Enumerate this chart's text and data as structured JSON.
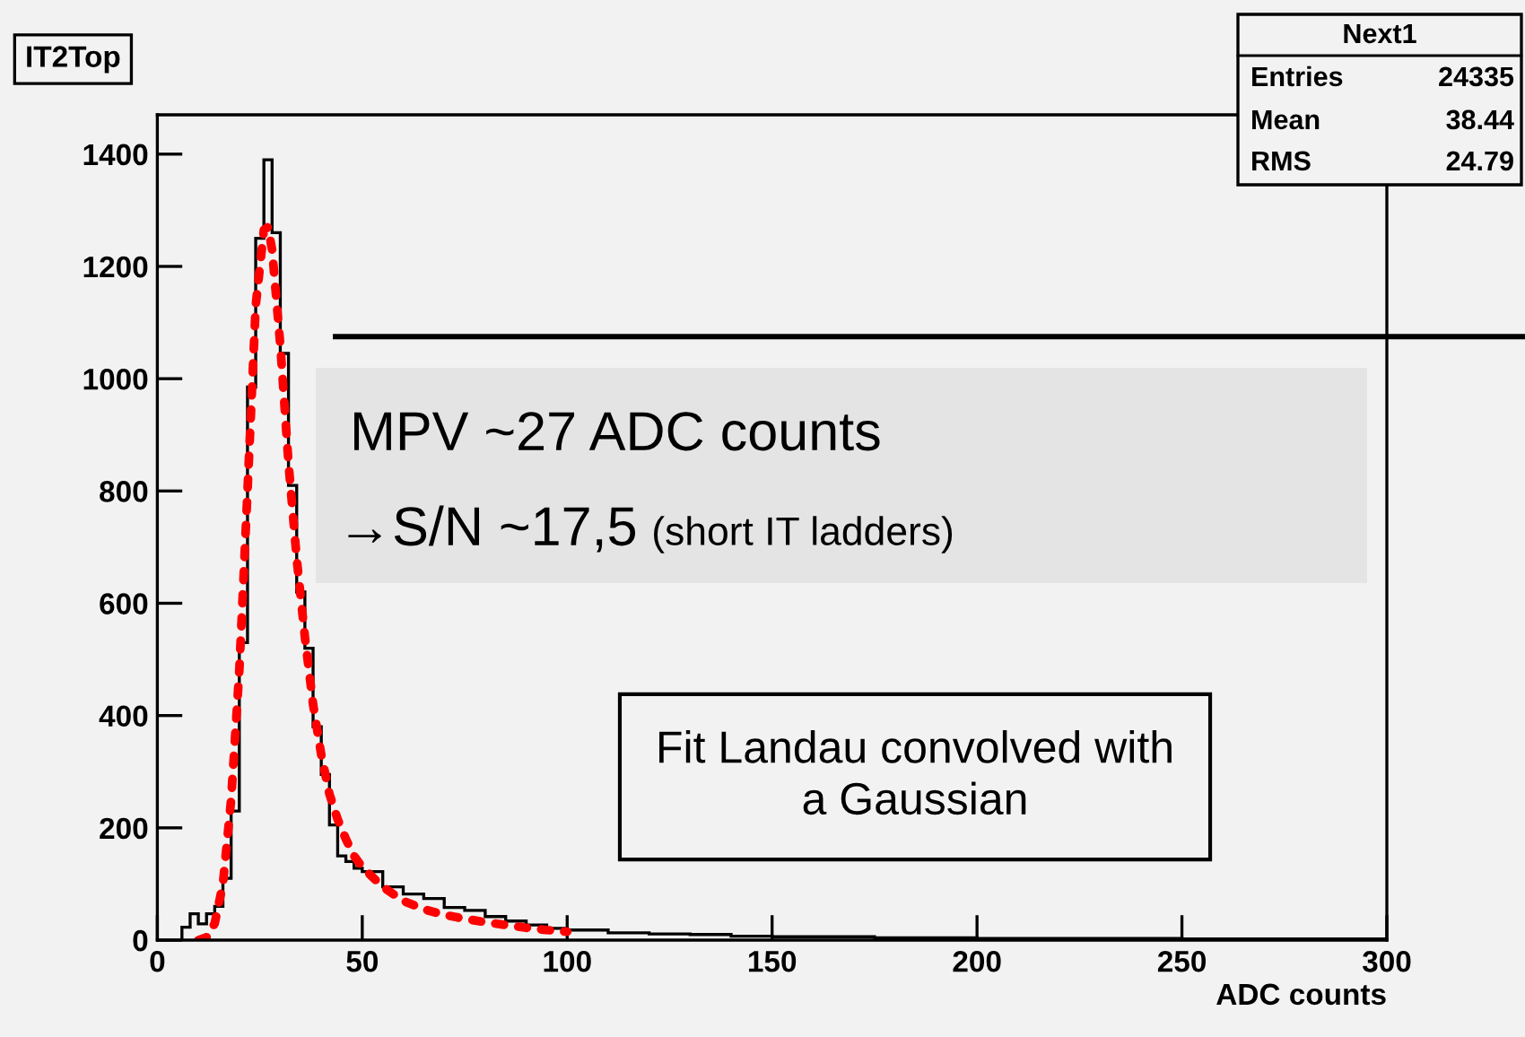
{
  "chart_data": {
    "type": "histogram",
    "title": "IT2Top",
    "xlabel": "ADC counts",
    "bins": [
      6,
      8,
      10,
      12,
      14,
      16,
      18,
      20,
      22,
      24,
      26,
      28,
      30,
      32,
      34,
      36,
      38,
      40,
      42,
      44,
      46,
      48,
      50,
      55,
      60,
      65,
      70,
      75,
      80,
      85,
      90,
      95,
      100,
      110,
      120,
      130,
      140,
      150,
      175,
      200,
      250,
      300
    ],
    "values": [
      23,
      47,
      29,
      47,
      60,
      110,
      230,
      530,
      985,
      1250,
      1390,
      1260,
      1045,
      810,
      620,
      520,
      380,
      295,
      205,
      150,
      140,
      128,
      122,
      95,
      82,
      74,
      58,
      53,
      42,
      34,
      27,
      21,
      18,
      13,
      11,
      10,
      7,
      6,
      4,
      3,
      2
    ],
    "color": "#000000",
    "series": [
      {
        "type": "line",
        "color": "#ff0000",
        "line_style": "dotted",
        "x": [
          10,
          12,
          14,
          16,
          18,
          20,
          22,
          24,
          26,
          27,
          28,
          30,
          32,
          34,
          36,
          38,
          40,
          42,
          44,
          46,
          48,
          50,
          55,
          60,
          65,
          70,
          75,
          80,
          85,
          90,
          95,
          100
        ],
        "values": [
          0,
          5,
          30,
          100,
          250,
          480,
          800,
          1130,
          1265,
          1270,
          1230,
          1060,
          850,
          680,
          540,
          420,
          330,
          260,
          215,
          180,
          150,
          130,
          95,
          70,
          55,
          45,
          38,
          32,
          27,
          22,
          18,
          15
        ]
      }
    ],
    "ref_lines": [
      {
        "axis": "y",
        "value": 1075,
        "color": "#000000"
      }
    ],
    "annotations": [
      "Next1",
      "Entries",
      "24335",
      "Mean",
      "38.44",
      "RMS",
      "24.79",
      "MPV ~27 ADC counts",
      "→S/N ~17,5",
      "(short IT ladders)",
      "Fit Landau convolved with\na Gaussian"
    ],
    "xlim": [
      0,
      300
    ],
    "xticks": [
      0,
      50,
      100,
      150,
      200,
      250,
      300
    ],
    "ylim": [
      0,
      1470
    ],
    "yticks": [
      0,
      200,
      400,
      600,
      800,
      1000,
      1200,
      1400
    ],
    "grid": false,
    "legend": false
  }
}
